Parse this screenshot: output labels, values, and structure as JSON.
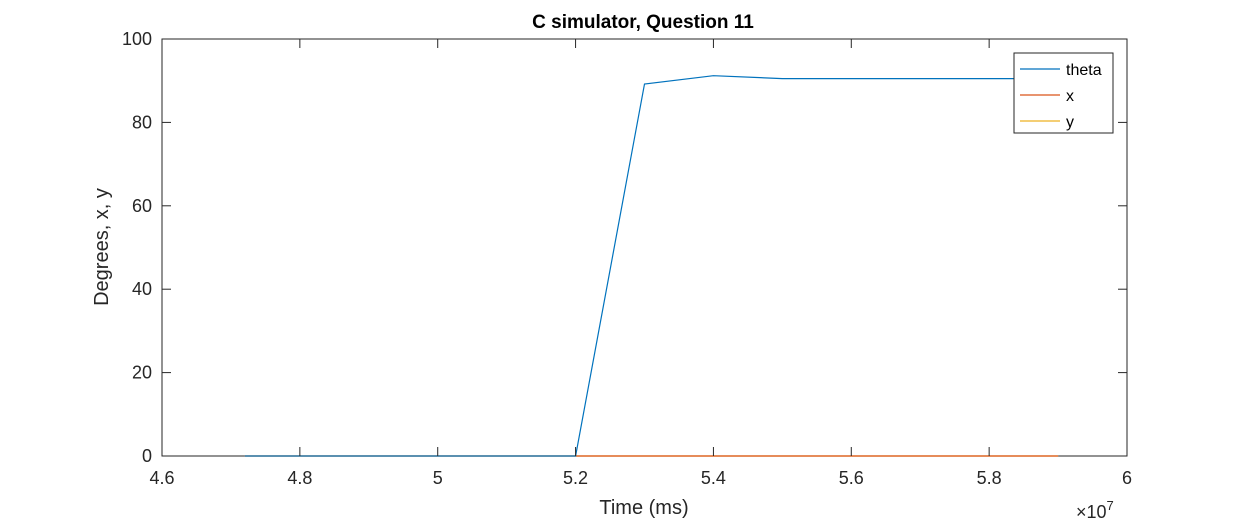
{
  "chart_data": {
    "type": "line",
    "title": "C simulator, Question 11",
    "xlabel": "Time (ms)",
    "ylabel": "Degrees, x, y",
    "x_exponent_label": "×10",
    "x_exponent_power": "7",
    "xlim": [
      4.6,
      6.0
    ],
    "ylim": [
      0,
      100
    ],
    "xticks": [
      4.6,
      4.8,
      5.0,
      5.2,
      5.4,
      5.6,
      5.8,
      6.0
    ],
    "xtick_labels": [
      "4.6",
      "4.8",
      "5",
      "5.2",
      "5.4",
      "5.6",
      "5.8",
      "6"
    ],
    "yticks": [
      0,
      20,
      40,
      60,
      80,
      100
    ],
    "ytick_labels": [
      "0",
      "20",
      "40",
      "60",
      "80",
      "100"
    ],
    "grid": false,
    "legend_position": "top-right",
    "series": [
      {
        "name": "theta",
        "color": "#0072BD",
        "x": [
          4.72,
          4.8,
          4.9,
          5.0,
          5.1,
          5.19,
          5.2,
          5.3,
          5.4,
          5.5,
          5.6,
          5.7,
          5.8,
          5.9
        ],
        "y": [
          0,
          0,
          0,
          0,
          0,
          0,
          0,
          89.2,
          91.2,
          90.5,
          90.5,
          90.5,
          90.5,
          90.5
        ]
      },
      {
        "name": "x",
        "color": "#D95319",
        "x": [
          4.72,
          5.9
        ],
        "y": [
          0,
          0
        ]
      },
      {
        "name": "y",
        "color": "#EDB120",
        "x": [
          4.72,
          5.9
        ],
        "y": [
          0,
          0
        ]
      }
    ]
  }
}
